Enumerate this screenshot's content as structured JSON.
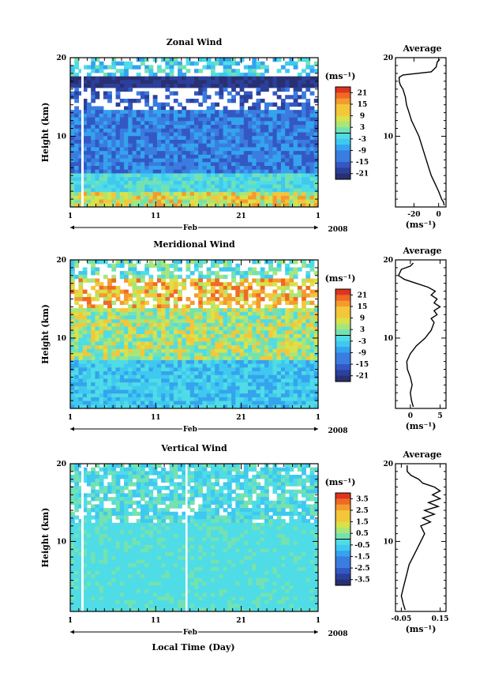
{
  "figure": {
    "xlabel": "Local Time (Day)",
    "month_label": "Feb",
    "year_label": "2008",
    "ylabel": "Height (km)",
    "avg_title": "Average"
  },
  "chart_data": [
    {
      "type": "heatmap",
      "title": "Zonal Wind",
      "xlabel": "Local Time (Day)",
      "ylabel": "Height (km)",
      "x_ticks": [
        "1",
        "11",
        "21",
        "1"
      ],
      "y_ticks": [
        "10",
        "20"
      ],
      "xlim": [
        1,
        30
      ],
      "ylim": [
        1,
        20
      ],
      "colorbar": {
        "unit": "(ms⁻¹)",
        "labels": [
          "21",
          "15",
          "9",
          "3",
          "-3",
          "-9",
          "-15",
          "-21"
        ],
        "range": [
          -24,
          24
        ]
      },
      "profile": {
        "title": "Average",
        "x_ticks": [
          "-20",
          "0"
        ],
        "xlim": [
          -35,
          6
        ],
        "xunit": "(ms⁻¹)",
        "points": [
          [
            4.5,
            1.2
          ],
          [
            4.0,
            1.6
          ],
          [
            2.5,
            2.0
          ],
          [
            0,
            3
          ],
          [
            -3,
            4
          ],
          [
            -6,
            5
          ],
          [
            -8,
            6
          ],
          [
            -10,
            7
          ],
          [
            -12,
            8
          ],
          [
            -14,
            9
          ],
          [
            -16,
            10
          ],
          [
            -19,
            11
          ],
          [
            -22,
            12
          ],
          [
            -24,
            13
          ],
          [
            -26,
            14
          ],
          [
            -27,
            15
          ],
          [
            -29,
            16
          ],
          [
            -31,
            16.5
          ],
          [
            -32,
            17
          ],
          [
            -32,
            17.5
          ],
          [
            -29,
            17.8
          ],
          [
            -6,
            18.2
          ],
          [
            -2,
            18.8
          ],
          [
            -1,
            19.5
          ],
          [
            1,
            19.8
          ]
        ]
      }
    },
    {
      "type": "heatmap",
      "title": "Meridional Wind",
      "xlabel": "Local Time (Day)",
      "ylabel": "Height (km)",
      "x_ticks": [
        "1",
        "11",
        "21",
        "1"
      ],
      "y_ticks": [
        "10",
        "20"
      ],
      "xlim": [
        1,
        30
      ],
      "ylim": [
        1,
        20
      ],
      "colorbar": {
        "unit": "(ms⁻¹)",
        "labels": [
          "21",
          "15",
          "9",
          "3",
          "-3",
          "-9",
          "-15",
          "-21"
        ],
        "range": [
          -24,
          24
        ]
      },
      "profile": {
        "title": "Average",
        "x_ticks": [
          "0",
          "5"
        ],
        "xlim": [
          -2.5,
          6
        ],
        "xunit": "(ms⁻¹)",
        "points": [
          [
            0.5,
            1.2
          ],
          [
            0.2,
            2
          ],
          [
            0,
            3
          ],
          [
            0.3,
            4
          ],
          [
            0,
            5
          ],
          [
            -0.5,
            6
          ],
          [
            -0.6,
            7
          ],
          [
            0,
            8
          ],
          [
            1,
            9
          ],
          [
            2.5,
            10
          ],
          [
            3.5,
            11
          ],
          [
            4,
            12
          ],
          [
            3.5,
            12.5
          ],
          [
            4.5,
            13
          ],
          [
            4,
            13.5
          ],
          [
            5,
            14
          ],
          [
            4,
            14.5
          ],
          [
            4.5,
            15
          ],
          [
            3.5,
            15.5
          ],
          [
            4.2,
            16
          ],
          [
            3,
            16.5
          ],
          [
            1,
            17
          ],
          [
            -1,
            17.5
          ],
          [
            -2,
            18
          ],
          [
            -1.5,
            18.8
          ],
          [
            0,
            19.2
          ],
          [
            0.5,
            19.6
          ]
        ]
      }
    },
    {
      "type": "heatmap",
      "title": "Vertical Wind",
      "xlabel": "Local Time (Day)",
      "ylabel": "Height (km)",
      "x_ticks": [
        "1",
        "11",
        "21",
        "1"
      ],
      "y_ticks": [
        "10",
        "20"
      ],
      "xlim": [
        1,
        30
      ],
      "ylim": [
        1,
        20
      ],
      "colorbar": {
        "unit": "(ms⁻¹)",
        "labels": [
          "3.5",
          "2.5",
          "1.5",
          "0.5",
          "-0.5",
          "-1.5",
          "-2.5",
          "-3.5"
        ],
        "range": [
          -4,
          4
        ]
      },
      "profile": {
        "title": "Average",
        "x_ticks": [
          "-0.05",
          "0.15"
        ],
        "xlim": [
          -0.08,
          0.18
        ],
        "xunit": "(ms⁻¹)",
        "points": [
          [
            -0.03,
            1.2
          ],
          [
            -0.04,
            2
          ],
          [
            -0.05,
            3
          ],
          [
            -0.04,
            4
          ],
          [
            -0.03,
            5
          ],
          [
            -0.02,
            6
          ],
          [
            -0.01,
            7
          ],
          [
            0.01,
            8
          ],
          [
            0.03,
            9
          ],
          [
            0.05,
            10
          ],
          [
            0.07,
            11
          ],
          [
            0.05,
            12
          ],
          [
            0.1,
            12.5
          ],
          [
            0.06,
            13
          ],
          [
            0.12,
            13.5
          ],
          [
            0.07,
            14
          ],
          [
            0.14,
            14.5
          ],
          [
            0.09,
            15
          ],
          [
            0.15,
            15.5
          ],
          [
            0.11,
            16
          ],
          [
            0.15,
            16.5
          ],
          [
            0.12,
            17
          ],
          [
            0.06,
            17.5
          ],
          [
            0.04,
            18
          ],
          [
            0.0,
            18.5
          ],
          [
            -0.02,
            19
          ],
          [
            -0.02,
            19.8
          ]
        ]
      }
    }
  ]
}
